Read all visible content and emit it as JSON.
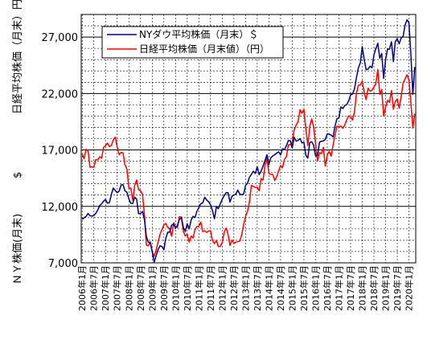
{
  "chart_data": {
    "type": "line",
    "ylabel_left_top": "日経平均株価（月末）円",
    "ylabel_left_bottom": "ＮＹ株価(月末)",
    "ylabel_dollar": "$",
    "legend": {
      "position": "top-left",
      "entries": [
        {
          "label": "NYダウ平均株価（月末）＄",
          "color": "#000080"
        },
        {
          "label": "日経平均株価（月末値）（円）",
          "color": "#ff0000"
        }
      ]
    },
    "ylim": [
      7000,
      29000
    ],
    "yticks": [
      7000,
      12000,
      17000,
      22000,
      27000
    ],
    "ytick_labels": [
      "7,000",
      "12,000",
      "17,000",
      "22,000",
      "27,000"
    ],
    "grid": true,
    "x_start": "2006-01",
    "x_end": "2020-04",
    "xtick_labels": [
      "2006年1月",
      "2006年7月",
      "2007年1月",
      "2007年7月",
      "2008年1月",
      "2008年7月",
      "2009年1月",
      "2009年7月",
      "2010年1月",
      "2010年7月",
      "2011年1月",
      "2011年7月",
      "2012年1月",
      "2012年7月",
      "2013年1月",
      "2013年7月",
      "2014年1月",
      "2014年7月",
      "2015年1月",
      "2015年7月",
      "2016年1月",
      "2016年7月",
      "2017年1月",
      "2017年7月",
      "2018年1月",
      "2018年7月",
      "2019年1月",
      "2019年7月",
      "2020年1月"
    ],
    "series": [
      {
        "name": "NYダウ平均株価（月末）＄",
        "color": "#000080",
        "values": [
          10860,
          10990,
          11110,
          11370,
          11170,
          11150,
          11180,
          11380,
          11680,
          12080,
          12220,
          12460,
          12620,
          12270,
          12350,
          13060,
          13630,
          13410,
          13210,
          13360,
          13900,
          13930,
          13370,
          13260,
          12650,
          12270,
          12260,
          12820,
          12640,
          11350,
          11380,
          11540,
          10850,
          9330,
          8830,
          8780,
          8000,
          7060,
          7610,
          8170,
          8500,
          8450,
          8170,
          9170,
          9710,
          9710,
          10340,
          10430,
          10070,
          10330,
          10860,
          11010,
          10140,
          9770,
          10470,
          10010,
          10790,
          11120,
          11010,
          11580,
          11890,
          12230,
          12320,
          12810,
          12570,
          12410,
          12140,
          11610,
          10910,
          11960,
          11800,
          12220,
          12630,
          12950,
          13210,
          13210,
          12390,
          12880,
          13010,
          13090,
          13440,
          13100,
          13030,
          13100,
          13860,
          14050,
          14580,
          14840,
          15120,
          14910,
          15500,
          14810,
          15130,
          15550,
          16090,
          16580,
          15700,
          16320,
          16460,
          16580,
          16720,
          16830,
          16560,
          17100,
          17040,
          17390,
          17830,
          17820,
          17160,
          18130,
          17780,
          17840,
          18010,
          17620,
          17690,
          16530,
          16280,
          17660,
          17720,
          17430,
          16470,
          16520,
          17690,
          17770,
          17790,
          17930,
          18430,
          18400,
          18310,
          18140,
          19120,
          19760,
          19860,
          20810,
          20660,
          20940,
          21010,
          21350,
          21890,
          21950,
          22400,
          23380,
          24270,
          24720,
          26150,
          25030,
          24100,
          24160,
          24420,
          24270,
          25420,
          25960,
          26460,
          25120,
          25540,
          23330,
          24990,
          25920,
          25930,
          26590,
          24820,
          26600,
          26860,
          26400,
          26920,
          27050,
          28050,
          28540,
          28260,
          25410,
          21920,
          24350
        ]
      },
      {
        "name": "日経平均株価（月末値）（円）",
        "color": "#ff0000",
        "values": [
          16650,
          16210,
          17060,
          16910,
          15470,
          15500,
          15460,
          16140,
          16130,
          16400,
          16270,
          17230,
          17380,
          17600,
          17290,
          17400,
          17880,
          18140,
          17250,
          16570,
          16790,
          16740,
          15680,
          15310,
          13590,
          13600,
          12530,
          13850,
          14340,
          13480,
          13380,
          13070,
          11260,
          8580,
          8510,
          8860,
          7990,
          7570,
          8110,
          8830,
          9520,
          9960,
          10360,
          10490,
          10130,
          10030,
          9340,
          10550,
          10200,
          10130,
          11090,
          11060,
          9770,
          9380,
          9540,
          8820,
          9370,
          9200,
          9940,
          10230,
          10240,
          10620,
          9760,
          9850,
          9690,
          9820,
          9830,
          8960,
          8700,
          8990,
          8430,
          8450,
          8800,
          9720,
          10080,
          9520,
          8540,
          9010,
          8700,
          8840,
          8870,
          8930,
          9450,
          10390,
          11140,
          11560,
          12400,
          13860,
          13770,
          13680,
          13670,
          13390,
          14460,
          14330,
          15660,
          16290,
          14910,
          14840,
          14830,
          14300,
          14630,
          15160,
          15620,
          15420,
          16170,
          16410,
          17460,
          17450,
          17670,
          18800,
          19210,
          19520,
          20560,
          20240,
          20590,
          18890,
          17390,
          19080,
          19750,
          19030,
          17520,
          16030,
          16760,
          16670,
          17230,
          15580,
          16570,
          16890,
          16450,
          17430,
          18310,
          19110,
          19040,
          19120,
          18910,
          19200,
          19650,
          20030,
          19930,
          19650,
          20360,
          22010,
          22720,
          22760,
          23100,
          22070,
          21450,
          22470,
          22200,
          22300,
          22550,
          22870,
          24120,
          21920,
          22350,
          20010,
          20770,
          21390,
          21210,
          22260,
          20600,
          21280,
          21520,
          20700,
          21760,
          22930,
          23290,
          23660,
          23210,
          21140,
          18920,
          20190
        ]
      }
    ]
  }
}
